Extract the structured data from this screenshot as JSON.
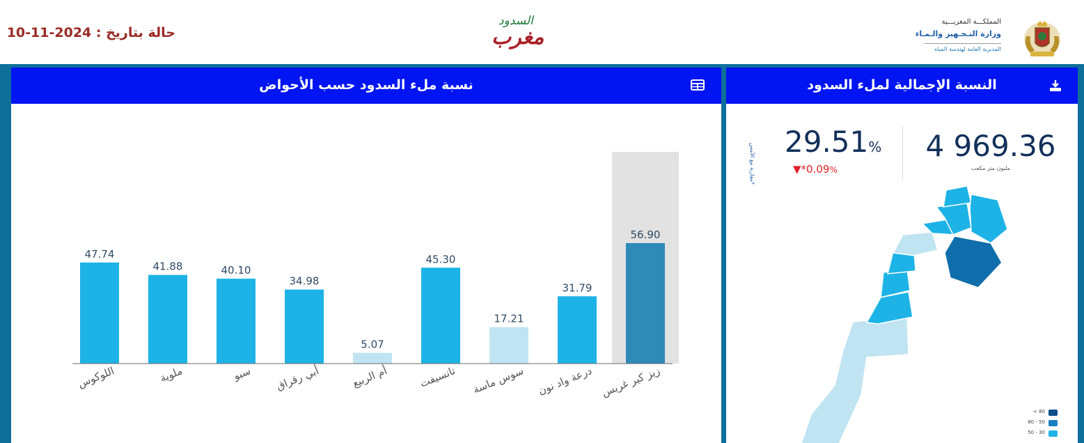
{
  "header": {
    "date_status": "حالة بتاريخ : 2024-11-10",
    "logo_line1": "السدود",
    "logo_line2": "مغرب",
    "ministry_line1": "المملكـــة المغربـــية",
    "ministry_line2": "وزارة التـجـهيز والـمـاء",
    "ministry_line3": "المديرية العامة لهندسة المياه"
  },
  "left_panel": {
    "title": "نسبة ملء السدود حسب الأحواض",
    "icon": "table-icon"
  },
  "right_panel": {
    "title": "النسبة الإجمالية لملء السدود",
    "icon": "download-icon",
    "kpi": {
      "fill_value": "29.51",
      "fill_unit": "%",
      "change_value": "0.09",
      "change_unit": "%",
      "change_marker": "▼*",
      "volume_value": "4 969.36",
      "volume_unit": "مليون متر مكعب"
    },
    "side_note": "*مقارنة مع الأمس",
    "legend": [
      {
        "label": "< 80",
        "color": "#0b4f8a"
      },
      {
        "label": "80 - 50",
        "color": "#1a80c4"
      },
      {
        "label": "50 - 30",
        "color": "#1db3e6"
      }
    ]
  },
  "chart_data": {
    "type": "bar",
    "title": "نسبة ملء السدود حسب الأحواض",
    "xlabel": "",
    "ylabel": "",
    "ylim": [
      0,
      100
    ],
    "categories": [
      "اللوكوس",
      "ملوية",
      "سبو",
      "أبي رقراق",
      "أم الربيع",
      "تانسيفت",
      "سوس ماسة",
      "درعة واد نون",
      "زيز كير غريس"
    ],
    "values": [
      47.74,
      41.88,
      40.1,
      34.98,
      5.07,
      45.3,
      17.21,
      31.79,
      56.9
    ],
    "value_labels": [
      "47.74",
      "41.88",
      "40.10",
      "34.98",
      "5.07",
      "45.30",
      "17.21",
      "31.79",
      "56.90"
    ],
    "highlighted_category": "زيز كير غريس",
    "colors": {
      "high": "#1db3e6",
      "low": "#c0e4f1",
      "highlight": "#2f8ab8",
      "highlight_bg": "#e2e2e2"
    }
  }
}
